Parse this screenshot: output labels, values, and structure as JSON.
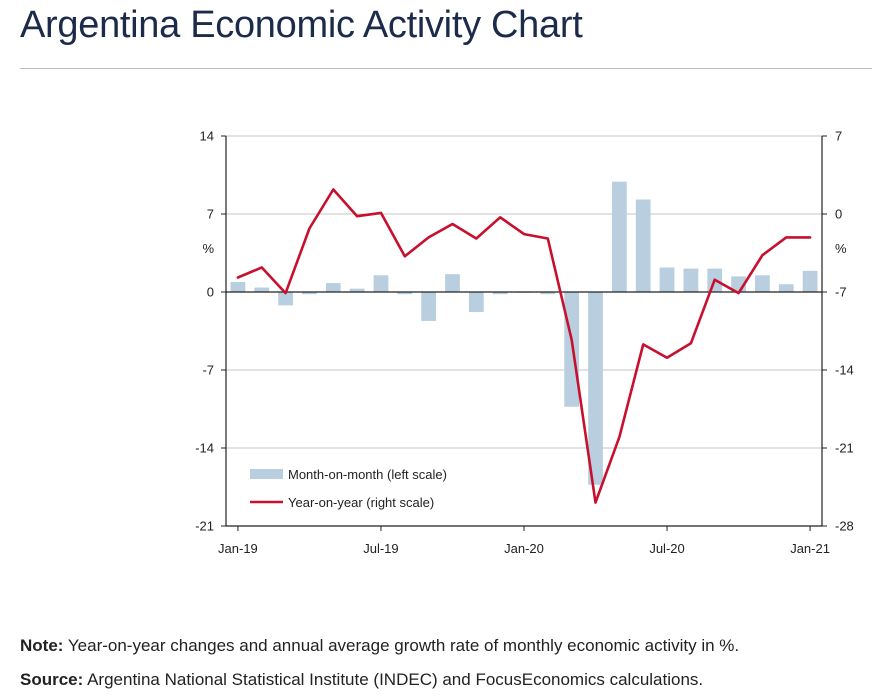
{
  "header": {
    "title": "Argentina Economic Activity Chart"
  },
  "notes": {
    "note_label": "Note:",
    "note_text": "Year-on-year changes and annual average growth rate of monthly economic activity in %.",
    "source_label": "Source:",
    "source_text": "Argentina National Statistical Institute (INDEC) and FocusEconomics calculations."
  },
  "chart_data": {
    "type": "bar",
    "title": "",
    "categories": [
      "Jan-19",
      "Feb-19",
      "Mar-19",
      "Apr-19",
      "May-19",
      "Jun-19",
      "Jul-19",
      "Aug-19",
      "Sep-19",
      "Oct-19",
      "Nov-19",
      "Dec-19",
      "Jan-20",
      "Feb-20",
      "Mar-20",
      "Apr-20",
      "May-20",
      "Jun-20",
      "Jul-20",
      "Aug-20",
      "Sep-20",
      "Oct-20",
      "Nov-20",
      "Dec-20",
      "Jan-21"
    ],
    "x_tick_labels": [
      "Jan-19",
      "Jul-19",
      "Jan-20",
      "Jul-20",
      "Jan-21"
    ],
    "left_axis": {
      "unit_label": "%",
      "ylim": [
        -21,
        14
      ],
      "ticks": [
        14,
        7,
        0,
        -7,
        -14,
        -21
      ]
    },
    "right_axis": {
      "unit_label": "%",
      "ylim": [
        -28,
        7
      ],
      "ticks": [
        7,
        0,
        -7,
        -14,
        -21,
        -28
      ]
    },
    "grid": true,
    "legend_position": "bottom-left",
    "series": [
      {
        "name": "Month-on-month (left scale)",
        "type": "bar",
        "axis": "left",
        "color": "#b9cfe0",
        "values": [
          0.9,
          0.4,
          -1.2,
          -0.2,
          0.8,
          0.3,
          1.5,
          -0.2,
          -2.6,
          1.6,
          -1.8,
          -0.2,
          0.0,
          -0.2,
          -10.3,
          -17.3,
          9.9,
          8.3,
          2.2,
          2.1,
          2.1,
          1.4,
          1.5,
          0.7,
          1.9
        ]
      },
      {
        "name": "Year-on-year (right scale)",
        "type": "line",
        "axis": "right",
        "color": "#c8102e",
        "values": [
          -5.7,
          -4.8,
          -7.1,
          -1.3,
          2.2,
          -0.2,
          0.1,
          -3.8,
          -2.1,
          -0.9,
          -2.2,
          -0.3,
          -1.8,
          -2.2,
          -11.3,
          -25.9,
          -20.0,
          -11.7,
          -12.9,
          -11.6,
          -5.9,
          -7.1,
          -3.7,
          -2.1,
          -2.1
        ]
      }
    ]
  }
}
